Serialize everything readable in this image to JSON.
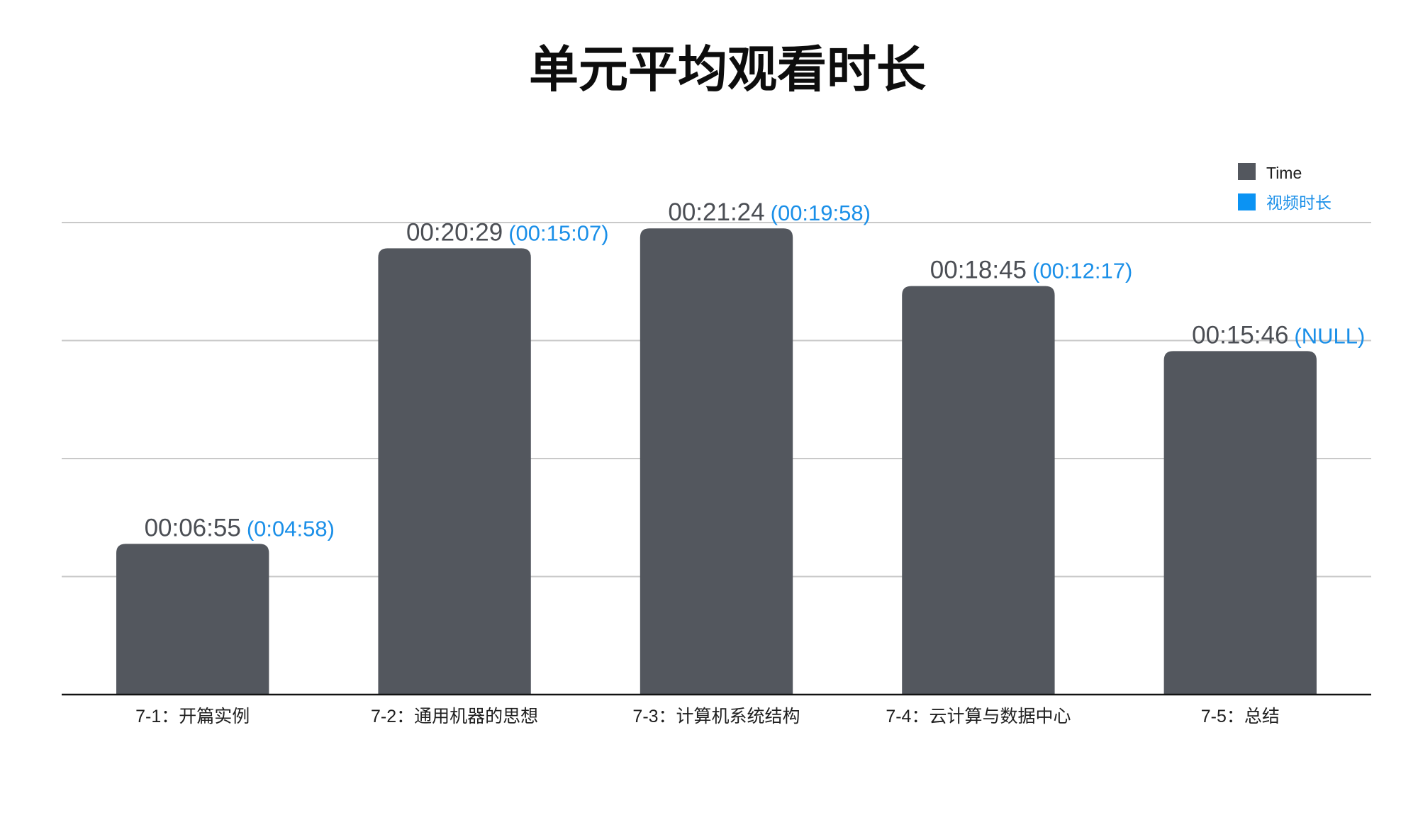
{
  "chart_data": {
    "type": "bar",
    "title": "单元平均观看时长",
    "categories": [
      "7-1：开篇实例",
      "7-2：通用机器的思想",
      "7-3：计算机系统结构",
      "7-4：云计算与数据中心",
      "7-5：总结"
    ],
    "series": [
      {
        "name": "Time",
        "color": "#53575e",
        "values": [
          "00:06:55",
          "00:20:29",
          "00:21:24",
          "00:18:45",
          "00:15:46"
        ]
      },
      {
        "name": "视频时长",
        "color": "#1a8fe8",
        "values": [
          "(0:04:58)",
          "(00:15:07)",
          "(00:19:58)",
          "(00:12:17)",
          "(NULL)"
        ]
      }
    ],
    "ylim": [
      "00:00:00",
      "00:21:40"
    ],
    "grid": true,
    "legend": "top-right"
  }
}
